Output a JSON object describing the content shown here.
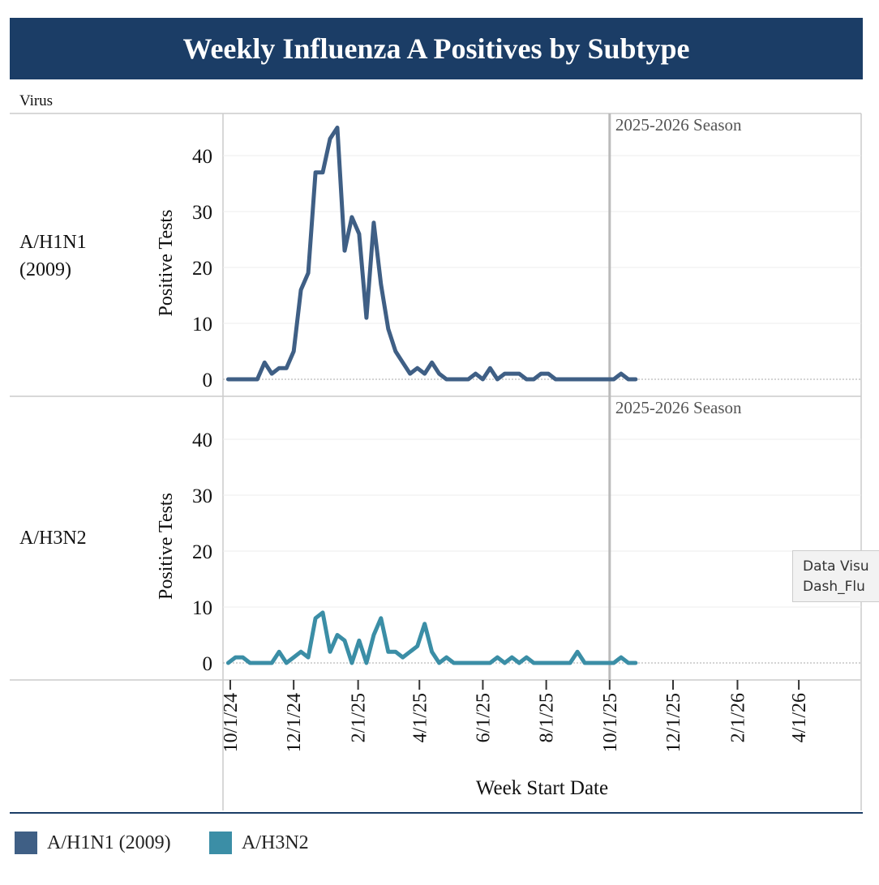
{
  "title": "Weekly Influenza A Positives by Subtype",
  "column_header": "Virus",
  "rows": [
    {
      "label_line1": "A/H1N1",
      "label_line2": "(2009)"
    },
    {
      "label_line1": "A/H3N2",
      "label_line2": ""
    }
  ],
  "tooltip": {
    "line1": "Data Visu",
    "line2": "Dash_Flu"
  },
  "legend": [
    {
      "label": "A/H1N1 (2009)",
      "color": "#3f5f85"
    },
    {
      "label": "A/H3N2",
      "color": "#3b8ea6"
    }
  ],
  "chart_data": {
    "type": "line",
    "xlabel": "Week Start Date",
    "ylabel": "Positive Tests",
    "ylim": [
      0,
      48
    ],
    "yticks": [
      0,
      10,
      20,
      30,
      40
    ],
    "x_range": [
      "2024-09-24",
      "2026-05-31"
    ],
    "xticks": [
      {
        "date": "2024-10-01",
        "label": "10/1/24"
      },
      {
        "date": "2024-12-01",
        "label": "12/1/24"
      },
      {
        "date": "2025-02-01",
        "label": "2/1/25"
      },
      {
        "date": "2025-04-01",
        "label": "4/1/25"
      },
      {
        "date": "2025-06-01",
        "label": "6/1/25"
      },
      {
        "date": "2025-08-01",
        "label": "8/1/25"
      },
      {
        "date": "2025-10-01",
        "label": "10/1/25"
      },
      {
        "date": "2025-12-01",
        "label": "12/1/25"
      },
      {
        "date": "2026-02-01",
        "label": "2/1/26"
      },
      {
        "date": "2026-04-01",
        "label": "4/1/26"
      }
    ],
    "season_marker": {
      "date": "2025-10-01",
      "label": "2025-2026 Season"
    },
    "gridlines": true,
    "legend_position": "bottom",
    "series": [
      {
        "name": "A/H1N1 (2009)",
        "color": "#3f5f85",
        "dates": [
          "2024-09-29",
          "2024-10-06",
          "2024-10-13",
          "2024-10-20",
          "2024-10-27",
          "2024-11-03",
          "2024-11-10",
          "2024-11-17",
          "2024-11-24",
          "2024-12-01",
          "2024-12-08",
          "2024-12-15",
          "2024-12-22",
          "2024-12-29",
          "2025-01-05",
          "2025-01-12",
          "2025-01-19",
          "2025-01-26",
          "2025-02-02",
          "2025-02-09",
          "2025-02-16",
          "2025-02-23",
          "2025-03-02",
          "2025-03-09",
          "2025-03-16",
          "2025-03-23",
          "2025-03-30",
          "2025-04-06",
          "2025-04-13",
          "2025-04-20",
          "2025-04-27",
          "2025-05-04",
          "2025-05-11",
          "2025-05-18",
          "2025-05-25",
          "2025-06-01",
          "2025-06-08",
          "2025-06-15",
          "2025-06-22",
          "2025-06-29",
          "2025-07-06",
          "2025-07-13",
          "2025-07-20",
          "2025-07-27",
          "2025-08-03",
          "2025-08-10",
          "2025-08-17",
          "2025-08-24",
          "2025-08-31",
          "2025-09-07",
          "2025-09-14",
          "2025-09-21",
          "2025-09-28",
          "2025-10-05",
          "2025-10-12",
          "2025-10-19",
          "2025-10-26"
        ],
        "values": [
          0,
          0,
          0,
          0,
          0,
          3,
          1,
          2,
          2,
          5,
          16,
          19,
          37,
          37,
          43,
          45,
          23,
          29,
          26,
          11,
          28,
          17,
          9,
          5,
          3,
          1,
          2,
          1,
          3,
          1,
          0,
          0,
          0,
          0,
          1,
          0,
          2,
          0,
          1,
          1,
          1,
          0,
          0,
          1,
          1,
          0,
          0,
          0,
          0,
          0,
          0,
          0,
          0,
          0,
          1,
          0,
          0
        ]
      },
      {
        "name": "A/H3N2",
        "color": "#3b8ea6",
        "dates": [
          "2024-09-29",
          "2024-10-06",
          "2024-10-13",
          "2024-10-20",
          "2024-10-27",
          "2024-11-03",
          "2024-11-10",
          "2024-11-17",
          "2024-11-24",
          "2024-12-01",
          "2024-12-08",
          "2024-12-15",
          "2024-12-22",
          "2024-12-29",
          "2025-01-05",
          "2025-01-12",
          "2025-01-19",
          "2025-01-26",
          "2025-02-02",
          "2025-02-09",
          "2025-02-16",
          "2025-02-23",
          "2025-03-02",
          "2025-03-09",
          "2025-03-16",
          "2025-03-23",
          "2025-03-30",
          "2025-04-06",
          "2025-04-13",
          "2025-04-20",
          "2025-04-27",
          "2025-05-04",
          "2025-05-11",
          "2025-05-18",
          "2025-05-25",
          "2025-06-01",
          "2025-06-08",
          "2025-06-15",
          "2025-06-22",
          "2025-06-29",
          "2025-07-06",
          "2025-07-13",
          "2025-07-20",
          "2025-07-27",
          "2025-08-03",
          "2025-08-10",
          "2025-08-17",
          "2025-08-24",
          "2025-08-31",
          "2025-09-07",
          "2025-09-14",
          "2025-09-21",
          "2025-09-28",
          "2025-10-05",
          "2025-10-12",
          "2025-10-19",
          "2025-10-26"
        ],
        "values": [
          0,
          1,
          1,
          0,
          0,
          0,
          0,
          2,
          0,
          1,
          2,
          1,
          8,
          9,
          2,
          5,
          4,
          0,
          4,
          0,
          5,
          8,
          2,
          2,
          1,
          2,
          3,
          7,
          2,
          0,
          1,
          0,
          0,
          0,
          0,
          0,
          0,
          1,
          0,
          1,
          0,
          1,
          0,
          0,
          0,
          0,
          0,
          0,
          2,
          0,
          0,
          0,
          0,
          0,
          1,
          0,
          0
        ]
      }
    ]
  }
}
